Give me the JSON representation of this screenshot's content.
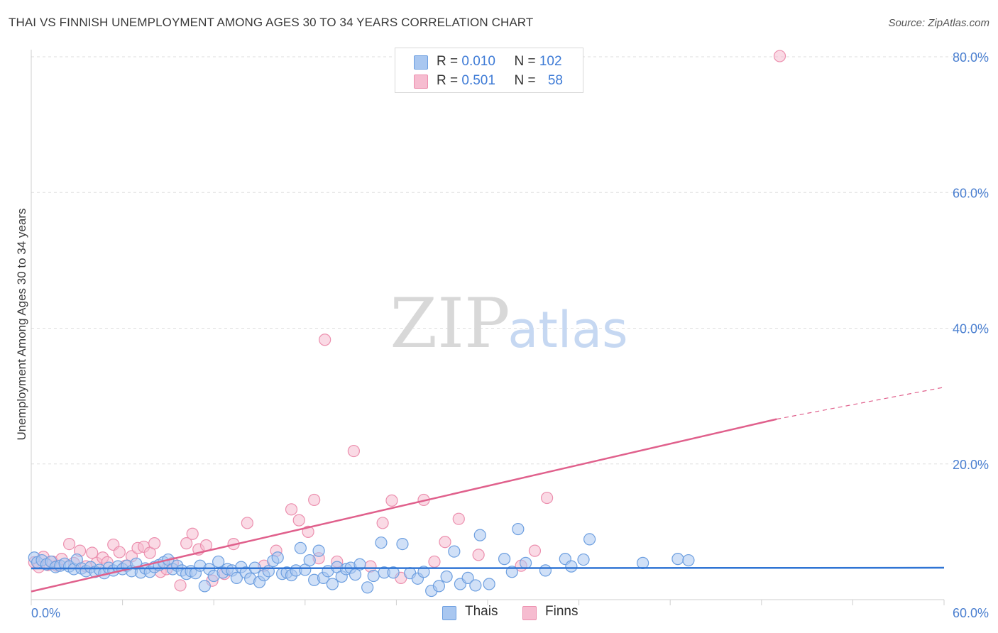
{
  "title": "THAI VS FINNISH UNEMPLOYMENT AMONG AGES 30 TO 34 YEARS CORRELATION CHART",
  "source": "Source: ZipAtlas.com",
  "watermark": {
    "zip": "ZIP",
    "atlas": "atlas"
  },
  "legend": {
    "row1": {
      "r_label": "R = ",
      "r_value": "0.010",
      "n_label": "N = ",
      "n_value": "102"
    },
    "row2": {
      "r_label": "R = ",
      "r_value": "0.501",
      "n_label": "N = ",
      "n_value": "58"
    }
  },
  "bottom_legend": {
    "thais": "Thais",
    "finns": "Finns"
  },
  "colors": {
    "blue_fill": "#a9c7f0",
    "blue_stroke": "#6d9fe0",
    "blue_line": "#2f74d4",
    "pink_fill": "#f6bcd0",
    "pink_stroke": "#ec8fae",
    "pink_line": "#e0608c",
    "tick_text": "#4a7fd0",
    "grid": "#dddddd"
  },
  "chart_data": {
    "type": "scatter",
    "title": "THAI VS FINNISH UNEMPLOYMENT AMONG AGES 30 TO 34 YEARS CORRELATION CHART",
    "xlabel": "",
    "ylabel": "Unemployment Among Ages 30 to 34 years",
    "xlim": [
      0,
      60
    ],
    "ylim": [
      0,
      83
    ],
    "y_ticks": [
      20,
      40,
      60,
      80
    ],
    "y_tick_labels": [
      "20.0%",
      "40.0%",
      "60.0%",
      "80.0%"
    ],
    "x_tick_labels": [
      "0.0%",
      "60.0%"
    ],
    "series": [
      {
        "name": "Thais",
        "r": 0.01,
        "n": 102,
        "trend": {
          "x0": 0,
          "y0": 4.6,
          "x1": 60,
          "y1": 4.7
        },
        "points": [
          [
            0.2,
            6.2
          ],
          [
            0.4,
            5.5
          ],
          [
            0.7,
            5.8
          ],
          [
            1.0,
            5.2
          ],
          [
            1.3,
            5.6
          ],
          [
            1.6,
            4.8
          ],
          [
            1.9,
            5.0
          ],
          [
            2.2,
            5.3
          ],
          [
            2.5,
            4.9
          ],
          [
            2.8,
            4.5
          ],
          [
            3.0,
            5.9
          ],
          [
            3.3,
            4.6
          ],
          [
            3.6,
            4.2
          ],
          [
            3.9,
            4.8
          ],
          [
            4.2,
            4.1
          ],
          [
            4.5,
            4.4
          ],
          [
            4.8,
            3.9
          ],
          [
            5.1,
            4.7
          ],
          [
            5.4,
            4.3
          ],
          [
            5.7,
            4.9
          ],
          [
            6.0,
            4.5
          ],
          [
            6.3,
            5.0
          ],
          [
            6.6,
            4.2
          ],
          [
            6.9,
            5.3
          ],
          [
            7.2,
            4.0
          ],
          [
            7.5,
            4.6
          ],
          [
            7.8,
            4.1
          ],
          [
            8.1,
            4.8
          ],
          [
            8.4,
            5.1
          ],
          [
            8.7,
            5.5
          ],
          [
            9.0,
            5.9
          ],
          [
            9.3,
            4.5
          ],
          [
            9.6,
            5.0
          ],
          [
            9.9,
            4.3
          ],
          [
            10.2,
            3.8
          ],
          [
            10.5,
            4.2
          ],
          [
            10.8,
            3.9
          ],
          [
            11.1,
            5.0
          ],
          [
            11.4,
            2.0
          ],
          [
            11.7,
            4.5
          ],
          [
            12.0,
            3.5
          ],
          [
            12.3,
            5.6
          ],
          [
            12.6,
            4.0
          ],
          [
            12.9,
            4.5
          ],
          [
            13.2,
            4.3
          ],
          [
            13.5,
            3.2
          ],
          [
            13.8,
            4.8
          ],
          [
            14.1,
            4.0
          ],
          [
            14.4,
            3.1
          ],
          [
            14.7,
            4.7
          ],
          [
            15.0,
            2.6
          ],
          [
            15.3,
            3.6
          ],
          [
            15.6,
            4.2
          ],
          [
            15.9,
            5.7
          ],
          [
            16.2,
            6.2
          ],
          [
            16.5,
            3.8
          ],
          [
            16.8,
            4.0
          ],
          [
            17.1,
            3.6
          ],
          [
            17.4,
            4.3
          ],
          [
            17.7,
            7.6
          ],
          [
            18.0,
            4.4
          ],
          [
            18.3,
            5.8
          ],
          [
            18.6,
            2.9
          ],
          [
            18.9,
            7.2
          ],
          [
            19.2,
            3.2
          ],
          [
            19.5,
            4.2
          ],
          [
            19.8,
            2.3
          ],
          [
            20.1,
            4.8
          ],
          [
            20.4,
            3.4
          ],
          [
            20.7,
            4.5
          ],
          [
            21.0,
            4.7
          ],
          [
            21.3,
            3.7
          ],
          [
            21.6,
            5.2
          ],
          [
            22.1,
            1.8
          ],
          [
            22.5,
            3.5
          ],
          [
            23.0,
            8.4
          ],
          [
            23.2,
            4.0
          ],
          [
            23.8,
            4.0
          ],
          [
            24.4,
            8.2
          ],
          [
            24.9,
            3.9
          ],
          [
            25.4,
            3.1
          ],
          [
            25.8,
            4.1
          ],
          [
            26.3,
            1.3
          ],
          [
            26.8,
            2.0
          ],
          [
            27.3,
            3.4
          ],
          [
            27.8,
            7.1
          ],
          [
            28.2,
            2.3
          ],
          [
            28.7,
            3.2
          ],
          [
            29.2,
            2.1
          ],
          [
            29.5,
            9.5
          ],
          [
            30.1,
            2.3
          ],
          [
            31.1,
            6.0
          ],
          [
            31.6,
            4.1
          ],
          [
            32.0,
            10.4
          ],
          [
            32.5,
            5.4
          ],
          [
            33.8,
            4.3
          ],
          [
            35.1,
            6.0
          ],
          [
            35.5,
            4.9
          ],
          [
            36.3,
            5.9
          ],
          [
            36.7,
            8.9
          ],
          [
            40.2,
            5.4
          ],
          [
            42.5,
            6.0
          ],
          [
            43.2,
            5.8
          ]
        ]
      },
      {
        "name": "Finns",
        "r": 0.501,
        "n": 58,
        "trend": {
          "x0": 0,
          "y0": 1.2,
          "x1": 49,
          "y1": 26.6,
          "dash_x1": 60,
          "dash_y1": 31.3
        },
        "points": [
          [
            0.2,
            5.5
          ],
          [
            0.5,
            4.8
          ],
          [
            0.8,
            6.3
          ],
          [
            1.1,
            5.1
          ],
          [
            1.4,
            5.6
          ],
          [
            1.7,
            5.0
          ],
          [
            2.0,
            6.0
          ],
          [
            2.5,
            8.2
          ],
          [
            2.8,
            5.4
          ],
          [
            3.2,
            7.2
          ],
          [
            3.6,
            4.9
          ],
          [
            4.0,
            6.9
          ],
          [
            4.3,
            5.4
          ],
          [
            4.7,
            6.2
          ],
          [
            5.0,
            5.5
          ],
          [
            5.4,
            8.1
          ],
          [
            5.8,
            7.0
          ],
          [
            6.2,
            5.0
          ],
          [
            6.6,
            6.4
          ],
          [
            7.0,
            7.6
          ],
          [
            7.4,
            7.8
          ],
          [
            7.8,
            6.9
          ],
          [
            8.1,
            8.3
          ],
          [
            8.5,
            4.1
          ],
          [
            8.9,
            4.5
          ],
          [
            9.3,
            5.4
          ],
          [
            9.8,
            2.1
          ],
          [
            10.2,
            8.3
          ],
          [
            10.6,
            9.7
          ],
          [
            11.0,
            7.4
          ],
          [
            11.5,
            8.0
          ],
          [
            11.9,
            2.8
          ],
          [
            12.7,
            3.8
          ],
          [
            13.3,
            8.2
          ],
          [
            14.2,
            11.3
          ],
          [
            15.3,
            5.0
          ],
          [
            16.1,
            7.2
          ],
          [
            17.1,
            13.3
          ],
          [
            17.6,
            11.7
          ],
          [
            18.2,
            10.0
          ],
          [
            18.6,
            14.7
          ],
          [
            18.9,
            6.1
          ],
          [
            19.3,
            38.3
          ],
          [
            20.1,
            5.6
          ],
          [
            21.2,
            21.9
          ],
          [
            22.3,
            4.9
          ],
          [
            23.1,
            11.3
          ],
          [
            23.7,
            14.6
          ],
          [
            24.3,
            3.2
          ],
          [
            25.8,
            14.7
          ],
          [
            26.5,
            5.6
          ],
          [
            27.2,
            8.5
          ],
          [
            28.1,
            11.9
          ],
          [
            29.4,
            6.6
          ],
          [
            32.2,
            5.0
          ],
          [
            33.1,
            7.2
          ],
          [
            33.9,
            15.0
          ],
          [
            49.2,
            80.1
          ]
        ]
      }
    ]
  }
}
